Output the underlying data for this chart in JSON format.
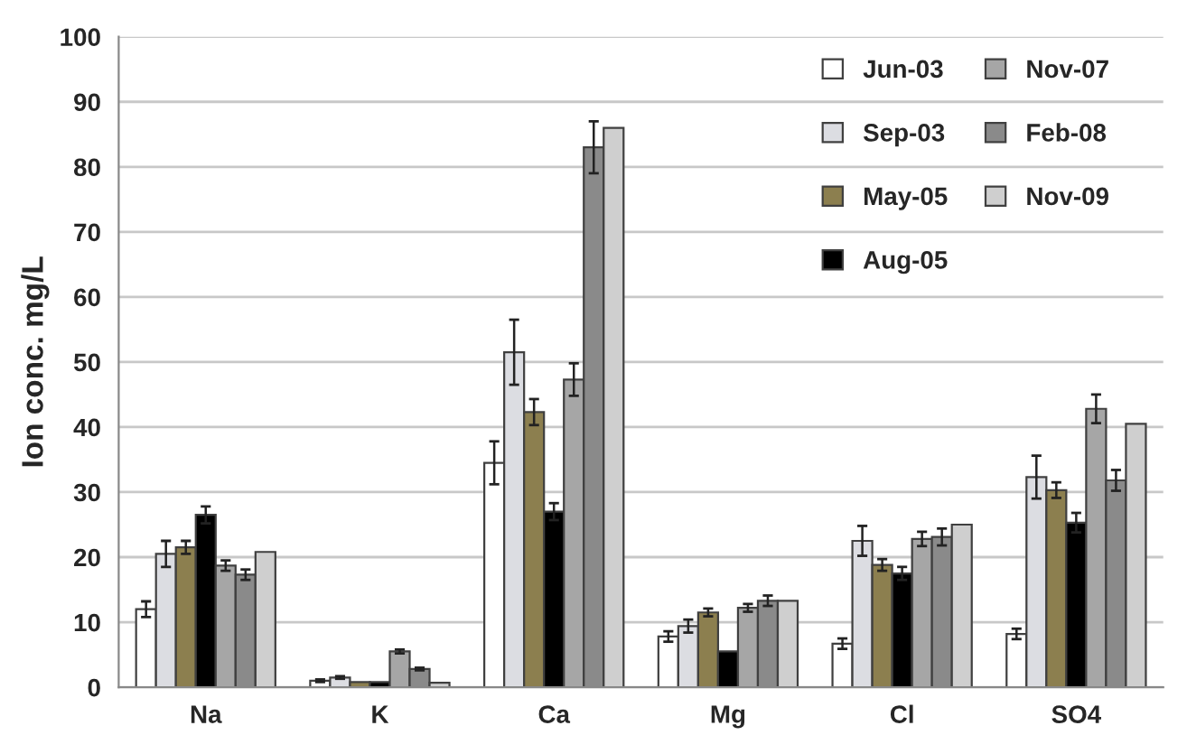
{
  "chart_data": {
    "type": "bar",
    "ylabel": "Ion conc. mg/L",
    "categories": [
      "Na",
      "K",
      "Ca",
      "Mg",
      "Cl",
      "SO4"
    ],
    "ylim": [
      0,
      100
    ],
    "yticks": [
      0,
      10,
      20,
      30,
      40,
      50,
      60,
      70,
      80,
      90,
      100
    ],
    "grid": "y",
    "legend": "top right",
    "series": [
      {
        "name": "Jun-03",
        "color": "#ffffff",
        "values": [
          12,
          1,
          34.5,
          7.8,
          6.7,
          8.2
        ],
        "errors": [
          1.2,
          0.2,
          3.3,
          0.8,
          0.8,
          0.8
        ]
      },
      {
        "name": "Sep-03",
        "color": "#dcdde2",
        "values": [
          20.5,
          1.5,
          51.5,
          9.4,
          22.5,
          32.3
        ],
        "errors": [
          2,
          0.2,
          5,
          1,
          2.3,
          3.3
        ]
      },
      {
        "name": "May-05",
        "color": "#8c7f4f",
        "values": [
          21.5,
          0.8,
          42.3,
          11.5,
          18.8,
          30.3
        ],
        "errors": [
          1,
          null,
          2,
          0.6,
          0.9,
          1.2
        ]
      },
      {
        "name": "Aug-05",
        "color": "#000000",
        "values": [
          26.5,
          0.8,
          27,
          5.5,
          17.5,
          25.3
        ],
        "errors": [
          1.3,
          null,
          1.3,
          null,
          1,
          1.5
        ]
      },
      {
        "name": "Nov-07",
        "color": "#a6a6a6",
        "values": [
          18.7,
          5.5,
          47.3,
          12.2,
          22.8,
          42.8
        ],
        "errors": [
          0.8,
          0.3,
          2.5,
          0.6,
          1.1,
          2.2
        ]
      },
      {
        "name": "Feb-08",
        "color": "#8a8a8a",
        "values": [
          17.3,
          2.8,
          83,
          13.3,
          23.1,
          31.8
        ],
        "errors": [
          0.8,
          0.2,
          4,
          0.8,
          1.3,
          1.6
        ]
      },
      {
        "name": "Nov-09",
        "color": "#cfcfcf",
        "values": [
          20.8,
          0.7,
          86,
          13.3,
          25,
          40.5
        ]
      }
    ]
  }
}
